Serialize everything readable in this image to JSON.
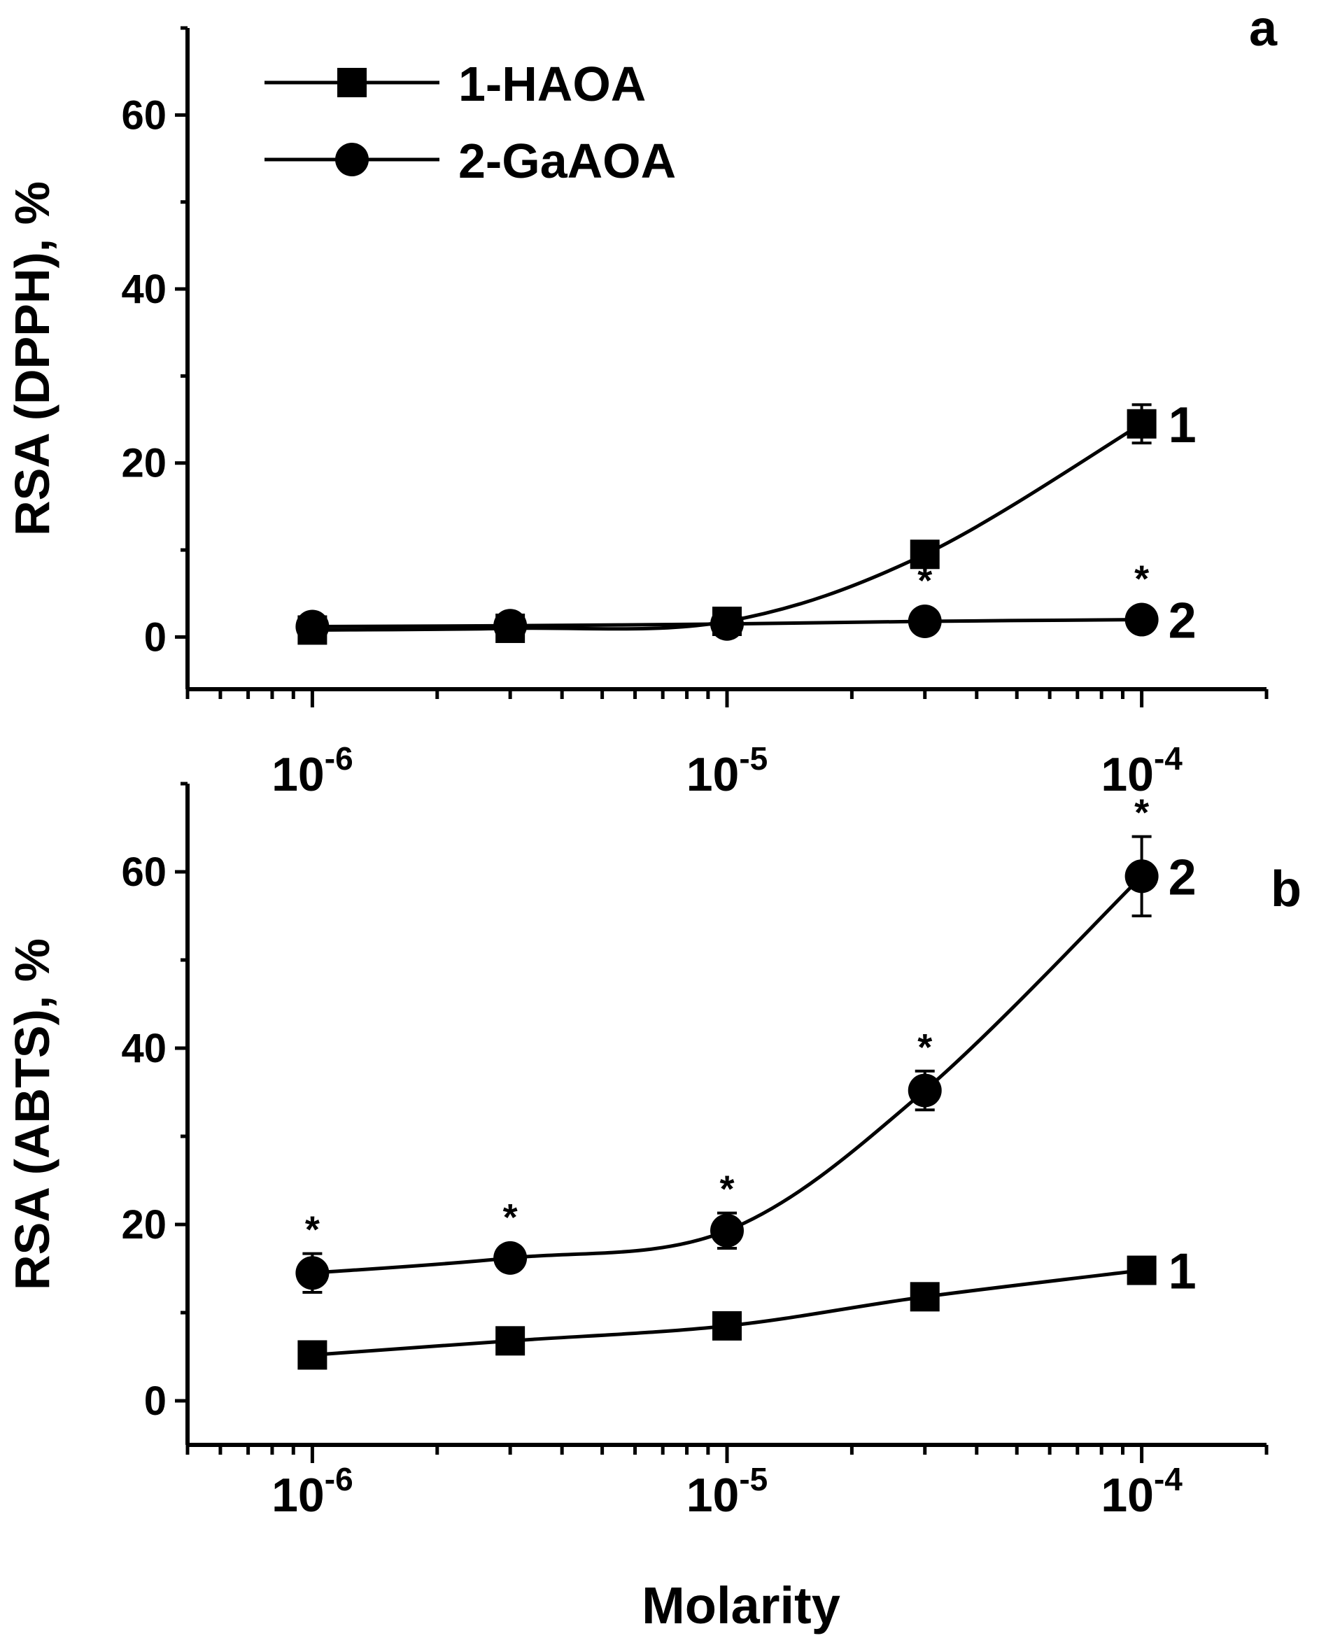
{
  "chart_data": [
    {
      "panel": "a",
      "type": "line",
      "panel_label": "a",
      "xscale": "log",
      "xlim": [
        5e-07,
        0.0002
      ],
      "ylim": [
        -6,
        70
      ],
      "yticks": [
        0,
        20,
        40,
        60
      ],
      "ylabel": "RSA (DPPH), %",
      "xlabel": "",
      "xtick_labels": [
        {
          "value": 1e-06,
          "base": "10",
          "exp": "-6"
        },
        {
          "value": 1e-05,
          "base": "10",
          "exp": "-5"
        },
        {
          "value": 0.0001,
          "base": "10",
          "exp": "-4"
        }
      ],
      "legend": [
        {
          "label": "1-HAOA",
          "marker": "square"
        },
        {
          "label": "2-GaAOA",
          "marker": "circle"
        }
      ],
      "series": [
        {
          "name": "1-HAOA",
          "curve_label": "1",
          "marker": "square",
          "x": [
            1e-06,
            3e-06,
            1e-05,
            3e-05,
            0.0001
          ],
          "y": [
            0.8,
            1.0,
            1.8,
            9.5,
            24.5
          ],
          "err": [
            0.5,
            0.5,
            0.5,
            1.0,
            2.2
          ],
          "significant": [
            false,
            false,
            false,
            false,
            false
          ]
        },
        {
          "name": "2-GaAOA",
          "curve_label": "2",
          "marker": "circle",
          "x": [
            1e-06,
            3e-06,
            1e-05,
            3e-05,
            0.0001
          ],
          "y": [
            1.2,
            1.3,
            1.5,
            1.8,
            2.0
          ],
          "err": [
            0.5,
            0.5,
            0.5,
            0.5,
            0.5
          ],
          "significant": [
            false,
            false,
            false,
            true,
            true
          ]
        }
      ],
      "significance_marker": "*"
    },
    {
      "panel": "b",
      "type": "line",
      "panel_label": "b",
      "xscale": "log",
      "xlim": [
        5e-07,
        0.0002
      ],
      "ylim": [
        -5,
        70
      ],
      "yticks": [
        0,
        20,
        40,
        60
      ],
      "ylabel": "RSA (ABTS), %",
      "xlabel": "Molarity",
      "xtick_labels": [
        {
          "value": 1e-06,
          "base": "10",
          "exp": "-6"
        },
        {
          "value": 1e-05,
          "base": "10",
          "exp": "-5"
        },
        {
          "value": 0.0001,
          "base": "10",
          "exp": "-4"
        }
      ],
      "series": [
        {
          "name": "1-HAOA",
          "curve_label": "1",
          "marker": "square",
          "x": [
            1e-06,
            3e-06,
            1e-05,
            3e-05,
            0.0001
          ],
          "y": [
            5.2,
            6.8,
            8.5,
            11.8,
            14.8
          ],
          "err": [
            0.6,
            0.6,
            0.6,
            1.0,
            0.8
          ],
          "significant": [
            false,
            false,
            false,
            false,
            false
          ]
        },
        {
          "name": "2-GaAOA",
          "curve_label": "2",
          "marker": "circle",
          "x": [
            1e-06,
            3e-06,
            1e-05,
            3e-05,
            0.0001
          ],
          "y": [
            14.5,
            16.2,
            19.3,
            35.2,
            59.5
          ],
          "err": [
            2.2,
            1.0,
            2.0,
            2.2,
            4.5
          ],
          "significant": [
            true,
            true,
            true,
            true,
            true
          ]
        }
      ],
      "significance_marker": "*"
    }
  ]
}
